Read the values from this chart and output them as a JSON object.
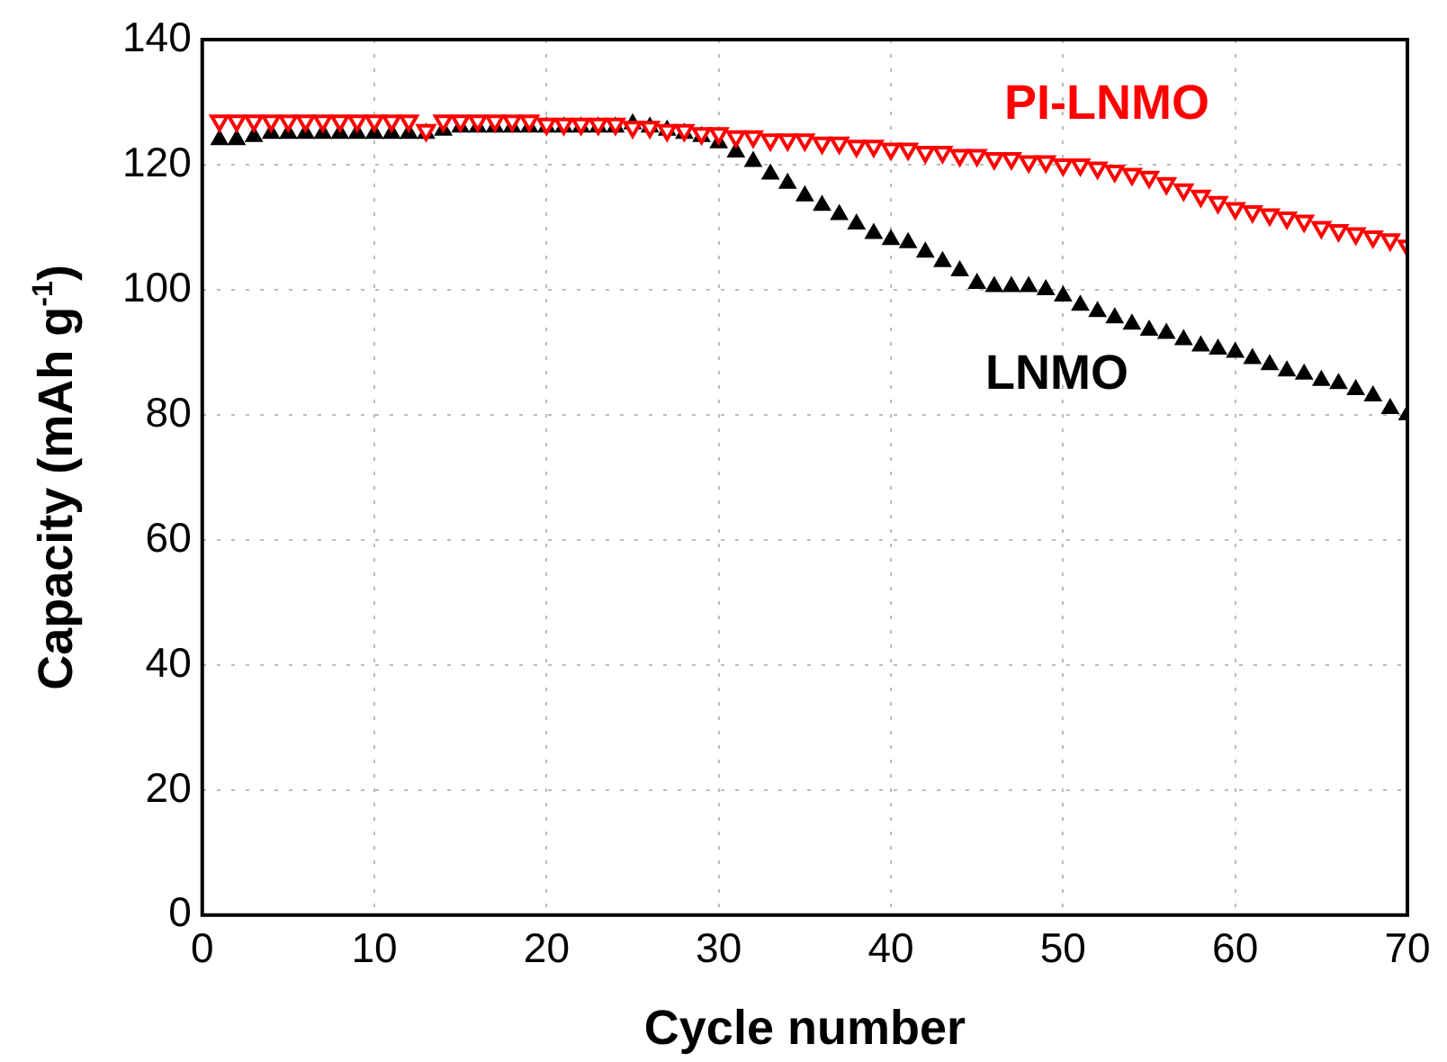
{
  "chart_data": {
    "type": "scatter",
    "xlabel": "Cycle number",
    "ylabel": "Capacity (mAh g$^{-1}$)",
    "x": [
      1,
      2,
      3,
      4,
      5,
      6,
      7,
      8,
      9,
      10,
      11,
      12,
      13,
      14,
      15,
      16,
      17,
      18,
      19,
      20,
      21,
      22,
      23,
      24,
      25,
      26,
      27,
      28,
      29,
      30,
      31,
      32,
      33,
      34,
      35,
      36,
      37,
      38,
      39,
      40,
      41,
      42,
      43,
      44,
      45,
      46,
      47,
      48,
      49,
      50,
      51,
      52,
      53,
      54,
      55,
      56,
      57,
      58,
      59,
      60,
      61,
      62,
      63,
      64,
      65,
      66,
      67,
      68,
      69,
      70
    ],
    "series": [
      {
        "name": "PI-LNMO",
        "color": "#ff0000",
        "marker": "triangle",
        "values": [
          127,
          127,
          127,
          127,
          127,
          127,
          127,
          127,
          127,
          127,
          127,
          127,
          125.5,
          127,
          127,
          127,
          127,
          127,
          127,
          126.5,
          126.5,
          126.5,
          126.5,
          126.5,
          126,
          126,
          125.5,
          125.5,
          125,
          125,
          124.5,
          124.5,
          124,
          124,
          124,
          123.5,
          123.5,
          123,
          123,
          122.5,
          122.5,
          122,
          122,
          121.5,
          121.5,
          121,
          121,
          120.5,
          120.5,
          120,
          120,
          119.5,
          119,
          118.5,
          118,
          117,
          116,
          115,
          114,
          113,
          112.5,
          112,
          111.5,
          111,
          110,
          109.5,
          109,
          108.5,
          108,
          107
        ]
      },
      {
        "name": "LNMO",
        "color": "#000000",
        "marker": "triangle",
        "values": [
          124,
          124,
          124.5,
          125,
          125,
          125,
          125,
          125,
          125,
          125,
          125,
          125,
          125,
          125.5,
          126,
          126,
          126,
          126,
          126,
          126,
          126,
          126,
          126,
          126,
          126.5,
          126,
          125.5,
          125,
          124.5,
          123.5,
          122,
          120.5,
          118.5,
          117,
          115,
          113.5,
          112,
          110.5,
          109,
          108,
          107.5,
          106,
          104.5,
          103,
          101,
          100.5,
          100.5,
          100.5,
          100,
          99,
          97.5,
          96.5,
          95.5,
          94.5,
          93.5,
          93,
          92,
          91,
          90.5,
          90,
          89,
          88,
          87,
          86.5,
          85.5,
          85,
          84,
          83,
          81,
          80
        ]
      }
    ],
    "xlim": [
      0,
      70
    ],
    "xticks": [
      0,
      10,
      20,
      30,
      40,
      50,
      60,
      70
    ],
    "ylim": [
      0,
      140
    ],
    "yticks": [
      0,
      20,
      40,
      60,
      80,
      100,
      120,
      140
    ],
    "grid": true,
    "legend": false
  }
}
